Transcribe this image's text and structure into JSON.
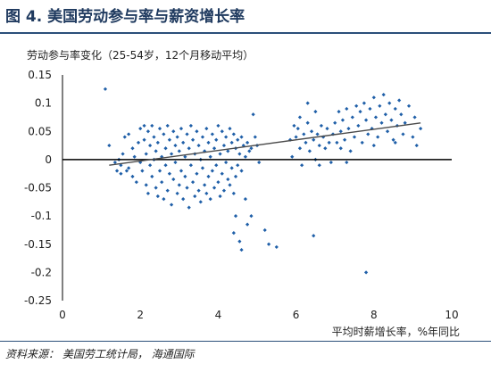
{
  "figure": {
    "title": "图 4. 美国劳动参与率与薪资增长率",
    "source": "资料来源： 美国劳工统计局， 海通国际"
  },
  "colors": {
    "points": "#1f5fa8",
    "trend": "#4a4a4a",
    "axis": "#000000",
    "rule": "#2b4f7a"
  },
  "chart_data": {
    "type": "scatter",
    "ylabel": "劳动参与率变化（25-54岁，12个月移动平均）",
    "xlabel": "平均时薪增长率，%年同比",
    "xlim": [
      0,
      10
    ],
    "ylim": [
      -0.25,
      0.15
    ],
    "x_ticks": [
      "0",
      "2",
      "4",
      "6",
      "8",
      "10"
    ],
    "y_ticks": [
      "0.15",
      "0.1",
      "0.05",
      "0",
      "-0.05",
      "-0.1",
      "-0.15",
      "-0.2",
      "-0.25"
    ],
    "grid": false,
    "trendline": {
      "x": [
        1.2,
        9.2
      ],
      "y": [
        -0.01,
        0.065
      ]
    },
    "points": [
      [
        1.1,
        0.125
      ],
      [
        1.2,
        0.025
      ],
      [
        1.35,
        -0.005
      ],
      [
        1.4,
        -0.02
      ],
      [
        1.45,
        0.0
      ],
      [
        1.5,
        -0.01
      ],
      [
        1.5,
        -0.025
      ],
      [
        1.55,
        0.01
      ],
      [
        1.6,
        0.04
      ],
      [
        1.65,
        -0.02
      ],
      [
        1.7,
        0.045
      ],
      [
        1.7,
        -0.015
      ],
      [
        1.8,
        0.02
      ],
      [
        1.8,
        -0.03
      ],
      [
        1.85,
        0.005
      ],
      [
        1.9,
        -0.04
      ],
      [
        1.95,
        0.03
      ],
      [
        2.0,
        0.055
      ],
      [
        2.0,
        -0.005
      ],
      [
        2.05,
        -0.02
      ],
      [
        2.1,
        0.06
      ],
      [
        2.1,
        0.035
      ],
      [
        2.15,
        0.01
      ],
      [
        2.15,
        -0.045
      ],
      [
        2.2,
        0.05
      ],
      [
        2.2,
        -0.06
      ],
      [
        2.25,
        0.025
      ],
      [
        2.25,
        -0.01
      ],
      [
        2.3,
        0.06
      ],
      [
        2.3,
        -0.03
      ],
      [
        2.35,
        0.04
      ],
      [
        2.35,
        0.0
      ],
      [
        2.4,
        0.015
      ],
      [
        2.4,
        -0.05
      ],
      [
        2.45,
        0.03
      ],
      [
        2.45,
        -0.065
      ],
      [
        2.5,
        0.055
      ],
      [
        2.5,
        -0.02
      ],
      [
        2.55,
        0.005
      ],
      [
        2.55,
        -0.04
      ],
      [
        2.6,
        0.045
      ],
      [
        2.6,
        -0.07
      ],
      [
        2.65,
        0.02
      ],
      [
        2.65,
        -0.01
      ],
      [
        2.7,
        0.06
      ],
      [
        2.7,
        -0.055
      ],
      [
        2.75,
        0.035
      ],
      [
        2.75,
        -0.025
      ],
      [
        2.8,
        0.01
      ],
      [
        2.8,
        -0.08
      ],
      [
        2.85,
        0.05
      ],
      [
        2.85,
        -0.035
      ],
      [
        2.9,
        0.025
      ],
      [
        2.9,
        -0.005
      ],
      [
        2.95,
        0.04
      ],
      [
        2.95,
        -0.06
      ],
      [
        3.0,
        0.015
      ],
      [
        3.0,
        -0.045
      ],
      [
        3.05,
        0.055
      ],
      [
        3.05,
        -0.02
      ],
      [
        3.1,
        0.03
      ],
      [
        3.1,
        -0.07
      ],
      [
        3.15,
        0.005
      ],
      [
        3.15,
        -0.03
      ],
      [
        3.2,
        0.045
      ],
      [
        3.2,
        -0.05
      ],
      [
        3.25,
        0.02
      ],
      [
        3.25,
        -0.085
      ],
      [
        3.3,
        0.06
      ],
      [
        3.3,
        -0.01
      ],
      [
        3.35,
        0.035
      ],
      [
        3.35,
        -0.04
      ],
      [
        3.4,
        0.01
      ],
      [
        3.4,
        -0.065
      ],
      [
        3.45,
        0.05
      ],
      [
        3.45,
        -0.025
      ],
      [
        3.5,
        0.025
      ],
      [
        3.5,
        -0.055
      ],
      [
        3.55,
        0.0
      ],
      [
        3.55,
        -0.075
      ],
      [
        3.6,
        0.04
      ],
      [
        3.6,
        -0.015
      ],
      [
        3.65,
        0.015
      ],
      [
        3.65,
        -0.045
      ],
      [
        3.7,
        0.055
      ],
      [
        3.7,
        -0.06
      ],
      [
        3.75,
        0.03
      ],
      [
        3.75,
        -0.03
      ],
      [
        3.8,
        0.005
      ],
      [
        3.8,
        -0.07
      ],
      [
        3.85,
        0.045
      ],
      [
        3.85,
        -0.02
      ],
      [
        3.9,
        0.02
      ],
      [
        3.9,
        -0.05
      ],
      [
        3.95,
        0.035
      ],
      [
        3.95,
        -0.01
      ],
      [
        4.0,
        0.06
      ],
      [
        4.0,
        -0.04
      ],
      [
        4.05,
        0.01
      ],
      [
        4.05,
        -0.065
      ],
      [
        4.1,
        0.05
      ],
      [
        4.1,
        -0.025
      ],
      [
        4.15,
        0.025
      ],
      [
        4.15,
        -0.055
      ],
      [
        4.2,
        0.04
      ],
      [
        4.2,
        -0.005
      ],
      [
        4.25,
        0.015
      ],
      [
        4.25,
        -0.035
      ],
      [
        4.3,
        0.055
      ],
      [
        4.3,
        -0.045
      ],
      [
        4.35,
        0.03
      ],
      [
        4.35,
        -0.015
      ],
      [
        4.4,
        0.045
      ],
      [
        4.4,
        -0.06
      ],
      [
        4.45,
        0.02
      ],
      [
        4.45,
        -0.03
      ],
      [
        4.5,
        0.035
      ],
      [
        4.5,
        -0.01
      ],
      [
        4.55,
        0.01
      ],
      [
        4.6,
        0.04
      ],
      [
        4.6,
        -0.02
      ],
      [
        4.65,
        0.025
      ],
      [
        4.7,
        0.005
      ],
      [
        4.75,
        0.03
      ],
      [
        4.8,
        0.015
      ],
      [
        4.85,
        0.02
      ],
      [
        4.9,
        0.08
      ],
      [
        4.95,
        0.04
      ],
      [
        5.0,
        0.025
      ],
      [
        5.05,
        -0.005
      ],
      [
        4.4,
        -0.13
      ],
      [
        4.45,
        -0.1
      ],
      [
        4.55,
        -0.145
      ],
      [
        4.6,
        -0.16
      ],
      [
        4.75,
        -0.115
      ],
      [
        4.85,
        -0.1
      ],
      [
        5.2,
        -0.125
      ],
      [
        5.3,
        -0.15
      ],
      [
        5.5,
        -0.155
      ],
      [
        4.7,
        -0.07
      ],
      [
        5.85,
        0.035
      ],
      [
        5.9,
        0.005
      ],
      [
        6.0,
        0.04
      ],
      [
        6.05,
        0.055
      ],
      [
        6.1,
        0.02
      ],
      [
        6.15,
        -0.01
      ],
      [
        6.2,
        0.045
      ],
      [
        6.25,
        0.03
      ],
      [
        6.3,
        0.065
      ],
      [
        6.3,
        0.1
      ],
      [
        6.35,
        0.015
      ],
      [
        6.4,
        0.05
      ],
      [
        6.45,
        0.035
      ],
      [
        6.5,
        0.085
      ],
      [
        6.5,
        0.0
      ],
      [
        6.55,
        0.045
      ],
      [
        6.6,
        0.025
      ],
      [
        6.65,
        0.06
      ],
      [
        6.7,
        0.04
      ],
      [
        6.75,
        0.02
      ],
      [
        6.8,
        0.055
      ],
      [
        6.85,
        0.03
      ],
      [
        6.9,
        -0.005
      ],
      [
        6.95,
        0.045
      ],
      [
        7.0,
        0.065
      ],
      [
        7.05,
        0.03
      ],
      [
        7.1,
        0.085
      ],
      [
        7.15,
        0.05
      ],
      [
        7.2,
        0.07
      ],
      [
        7.25,
        0.035
      ],
      [
        7.3,
        0.09
      ],
      [
        7.35,
        0.055
      ],
      [
        7.4,
        0.015
      ],
      [
        7.45,
        0.075
      ],
      [
        7.5,
        0.04
      ],
      [
        7.55,
        0.095
      ],
      [
        7.6,
        0.06
      ],
      [
        7.65,
        0.085
      ],
      [
        7.7,
        0.03
      ],
      [
        7.75,
        0.1
      ],
      [
        7.8,
        0.07
      ],
      [
        7.85,
        0.045
      ],
      [
        7.9,
        0.09
      ],
      [
        7.95,
        0.055
      ],
      [
        8.0,
        0.11
      ],
      [
        8.05,
        0.075
      ],
      [
        8.1,
        0.04
      ],
      [
        8.15,
        0.095
      ],
      [
        8.2,
        0.065
      ],
      [
        8.25,
        0.115
      ],
      [
        8.3,
        0.08
      ],
      [
        8.35,
        0.05
      ],
      [
        8.4,
        0.1
      ],
      [
        8.45,
        0.07
      ],
      [
        8.5,
        0.035
      ],
      [
        8.55,
        0.09
      ],
      [
        8.6,
        0.06
      ],
      [
        8.65,
        0.105
      ],
      [
        8.7,
        0.08
      ],
      [
        8.75,
        0.045
      ],
      [
        8.8,
        0.065
      ],
      [
        8.9,
        0.095
      ],
      [
        9.0,
        0.04
      ],
      [
        9.05,
        0.075
      ],
      [
        9.1,
        0.025
      ],
      [
        9.2,
        0.055
      ],
      [
        7.3,
        -0.005
      ],
      [
        6.6,
        -0.01
      ],
      [
        7.8,
        -0.2
      ],
      [
        6.45,
        -0.135
      ],
      [
        7.15,
        0.02
      ],
      [
        8.0,
        0.025
      ],
      [
        8.55,
        0.03
      ],
      [
        6.1,
        0.075
      ],
      [
        5.95,
        0.06
      ]
    ]
  }
}
